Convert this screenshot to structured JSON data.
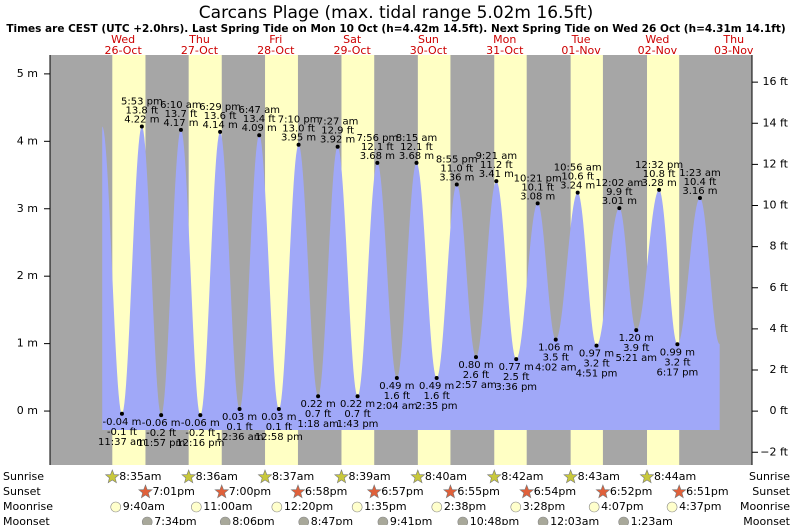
{
  "chart_data": {
    "type": "tide",
    "title": "Carcans Plage (max. tidal range 5.02m 16.5ft)",
    "subtitle": "Times are CEST (UTC +2.0hrs). Last Spring Tide on Mon 10 Oct (h=4.42m 14.5ft). Next Spring Tide on Wed 26 Oct (h=4.31m 14.1ft)",
    "days": [
      {
        "weekday": "Wed",
        "date": "26-Oct"
      },
      {
        "weekday": "Thu",
        "date": "27-Oct"
      },
      {
        "weekday": "Fri",
        "date": "28-Oct"
      },
      {
        "weekday": "Sat",
        "date": "29-Oct"
      },
      {
        "weekday": "Sun",
        "date": "30-Oct"
      },
      {
        "weekday": "Mon",
        "date": "31-Oct"
      },
      {
        "weekday": "Tue",
        "date": "01-Nov"
      },
      {
        "weekday": "Wed",
        "date": "02-Nov"
      },
      {
        "weekday": "Thu",
        "date": "03-Nov"
      }
    ],
    "extremes": {
      "times": [
        "11:37 am",
        "5:53 pm",
        "11:57 pm",
        "6:10 am",
        "12:16 pm",
        "6:29 pm",
        "12:36 am",
        "6:47 am",
        "12:58 pm",
        "7:10 pm",
        "1:18 am",
        "7:27 am",
        "1:43 pm",
        "7:56 pm",
        "2:04 am",
        "8:15 am",
        "2:35 pm",
        "8:55 pm",
        "2:57 am",
        "9:21 am",
        "3:36 pm",
        "10:21 pm",
        "4:02 am",
        "10:56 am",
        "4:51 pm",
        "12:02 am",
        "5:21 am",
        "12:32 pm",
        "6:17 pm",
        "1:23 am"
      ],
      "values": [
        -0.04,
        4.22,
        -0.06,
        4.17,
        -0.06,
        4.14,
        0.03,
        4.09,
        0.03,
        3.95,
        0.22,
        3.92,
        0.22,
        3.68,
        0.49,
        3.68,
        0.49,
        3.36,
        0.8,
        3.41,
        0.77,
        3.08,
        1.06,
        3.24,
        0.97,
        3.01,
        1.2,
        3.28,
        0.99,
        3.16
      ],
      "value_labels": [
        "-0.04 m",
        "4.22 m",
        "-0.06 m",
        "4.17 m",
        "-0.06 m",
        "4.14 m",
        "0.03 m",
        "4.09 m",
        "0.03 m",
        "3.95 m",
        "0.22 m",
        "3.92 m",
        "0.22 m",
        "3.68 m",
        "0.49 m",
        "3.68 m",
        "0.49 m",
        "3.36 m",
        "0.80 m",
        "3.41 m",
        "0.77 m",
        "3.08 m",
        "1.06 m",
        "3.24 m",
        "0.97 m",
        "3.01 m",
        "1.20 m",
        "3.28 m",
        "0.99 m",
        "3.16 m"
      ],
      "ft_labels": [
        "-0.1 ft",
        "13.8 ft",
        "-0.2 ft",
        "13.7 ft",
        "-0.2 ft",
        "13.6 ft",
        "0.1 ft",
        "13.4 ft",
        "0.1 ft",
        "13.0 ft",
        "0.7 ft",
        "12.9 ft",
        "0.7 ft",
        "12.1 ft",
        "1.6 ft",
        "12.1 ft",
        "1.6 ft",
        "11.0 ft",
        "2.6 ft",
        "11.2 ft",
        "2.5 ft",
        "10.1 ft",
        "3.5 ft",
        "10.6 ft",
        "3.2 ft",
        "9.9 ft",
        "3.9 ft",
        "10.8 ft",
        "3.2 ft",
        "10.4 ft"
      ]
    },
    "ylim": [
      -0.8,
      5.28
    ],
    "yticks": [
      {
        "value": 0,
        "label": "0 m"
      },
      {
        "value": 1,
        "label": "1 m"
      },
      {
        "value": 2,
        "label": "2 m"
      },
      {
        "value": 3,
        "label": "3 m"
      },
      {
        "value": 4,
        "label": "4 m"
      },
      {
        "value": 5,
        "label": "5 m"
      }
    ],
    "y2lim": [
      -2.62,
      17.32
    ],
    "y2ticks": [
      {
        "value": -2,
        "label": "−2 ft"
      },
      {
        "value": 0,
        "label": "0 ft"
      },
      {
        "value": 2,
        "label": "2 ft"
      },
      {
        "value": 4,
        "label": "4 ft"
      },
      {
        "value": 6,
        "label": "6 ft"
      },
      {
        "value": 8,
        "label": "8 ft"
      },
      {
        "value": 10,
        "label": "10 ft"
      },
      {
        "value": 12,
        "label": "12 ft"
      },
      {
        "value": 14,
        "label": "14 ft"
      },
      {
        "value": 16,
        "label": "16 ft"
      }
    ],
    "tide_color": "#a0a8f8",
    "night_color": "#a6a6a6",
    "day_color": "#ffffc4",
    "day_label_color": "#cc0000",
    "rows": [
      {
        "name": "Sunrise",
        "icon": "sun-up",
        "times": [
          "8:35am",
          "8:36am",
          "8:37am",
          "8:39am",
          "8:40am",
          "8:42am",
          "8:43am",
          "8:44am",
          null
        ]
      },
      {
        "name": "Sunset",
        "icon": "sun-down",
        "times": [
          "7:01pm",
          "7:00pm",
          "6:58pm",
          "6:57pm",
          "6:55pm",
          "6:54pm",
          "6:52pm",
          "6:51pm",
          null
        ]
      },
      {
        "name": "Moonrise",
        "icon": "moon-up",
        "times": [
          "9:40am",
          "11:00am",
          "12:20pm",
          "1:35pm",
          "2:38pm",
          "3:28pm",
          "4:07pm",
          "4:37pm",
          null
        ]
      },
      {
        "name": "Moonset",
        "icon": "moon-down",
        "times": [
          "7:34pm",
          "8:06pm",
          "8:47pm",
          "9:41pm",
          "10:48pm",
          null,
          "12:03am",
          "1:23am",
          null
        ]
      }
    ]
  }
}
